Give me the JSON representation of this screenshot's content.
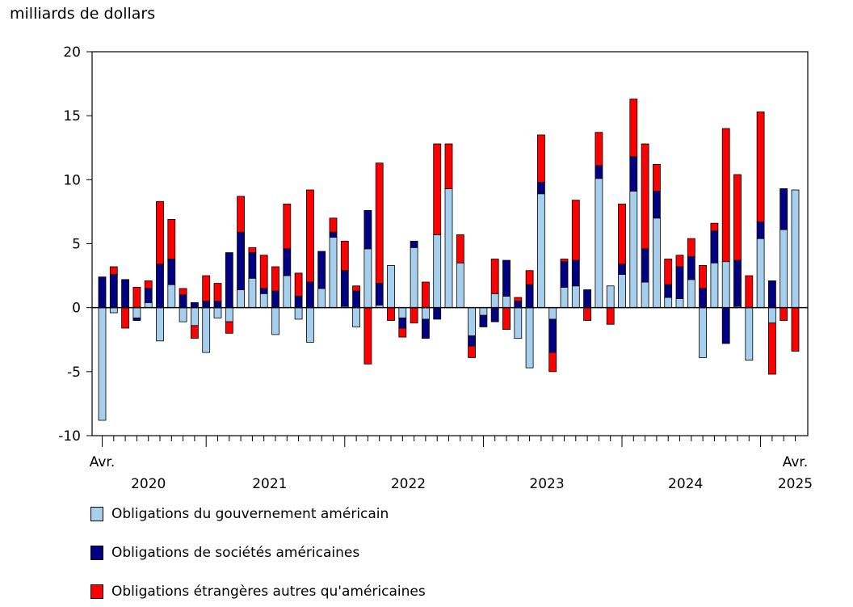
{
  "chart_data": {
    "type": "bar",
    "stacked": true,
    "ylabel": "milliards de dollars",
    "ylim": [
      -10,
      20
    ],
    "yticks": [
      -10,
      -5,
      0,
      5,
      10,
      15,
      20
    ],
    "start_month": "Avr.",
    "end_month": "Avr.",
    "year_labels": [
      "2020",
      "2021",
      "2022",
      "2023",
      "2024",
      "2025"
    ],
    "grid": false,
    "colors": {
      "gov": "#a6cfee",
      "corp": "#000080",
      "foreign": "#ff0000"
    },
    "series": [
      {
        "name": "Obligations du gouvernement américain",
        "values": [
          -8.8,
          -0.4,
          0,
          -0.8,
          0.4,
          -2.6,
          1.8,
          -1.1,
          -1.4,
          -3.5,
          -0.8,
          -1.1,
          1.4,
          2.3,
          1.1,
          -2.1,
          2.5,
          -0.9,
          -2.7,
          1.5,
          5.5,
          0.1,
          -1.5,
          4.6,
          0.2,
          3.3,
          -0.8,
          4.7,
          -0.9,
          5.7,
          9.3,
          3.5,
          -2.2,
          -0.6,
          1.1,
          0.9,
          -2.4,
          -4.7,
          8.9,
          -0.9,
          1.6,
          1.7,
          0,
          10.1,
          1.7,
          2.6,
          9.1,
          2.0,
          7.0,
          0.8,
          0.7,
          2.2,
          -3.9,
          3.5,
          3.6,
          0.1,
          -4.1,
          5.4,
          -1.2,
          6.1,
          9.2
        ]
      },
      {
        "name": "Obligations de sociétés américaines",
        "values": [
          2.4,
          2.6,
          2.2,
          -0.2,
          1.1,
          3.4,
          2.0,
          1.0,
          0.4,
          0.5,
          0.5,
          4.3,
          4.5,
          2.0,
          0.4,
          1.3,
          2.1,
          0.9,
          2.0,
          2.9,
          0.4,
          2.8,
          1.3,
          3.0,
          1.7,
          0,
          -0.8,
          0.5,
          -1.5,
          -0.9,
          0,
          0,
          -0.8,
          -0.9,
          -1.1,
          2.8,
          0.5,
          1.8,
          0.9,
          -2.6,
          2.0,
          2.0,
          1.4,
          1.0,
          0,
          0.8,
          2.7,
          2.6,
          2.1,
          1.0,
          2.5,
          1.8,
          1.5,
          2.5,
          -2.8,
          3.6,
          0,
          1.3,
          2.1,
          3.2,
          0
        ]
      },
      {
        "name": "Obligations étrangères autres qu'américaines",
        "values": [
          0,
          0.6,
          -1.6,
          1.6,
          0.6,
          4.9,
          3.1,
          0.5,
          -1.0,
          2.0,
          1.4,
          -0.9,
          2.8,
          0.4,
          2.6,
          1.9,
          3.5,
          1.8,
          7.2,
          0,
          1.1,
          2.3,
          0.4,
          -4.4,
          9.4,
          -1.0,
          -0.7,
          -1.2,
          2.0,
          7.1,
          3.5,
          2.2,
          -0.9,
          0,
          2.7,
          -1.7,
          0.3,
          1.1,
          3.7,
          -1.5,
          0.2,
          4.7,
          -1.0,
          2.6,
          -1.3,
          4.7,
          4.5,
          8.2,
          2.1,
          2.0,
          0.9,
          1.4,
          1.8,
          0.6,
          10.4,
          6.7,
          2.5,
          8.6,
          -4.0,
          -1.0,
          -3.4
        ]
      }
    ]
  },
  "legend": [
    {
      "label": "Obligations du gouvernement américain",
      "color": "#a6cfee"
    },
    {
      "label": "Obligations de sociétés américaines",
      "color": "#000080"
    },
    {
      "label": "Obligations étrangères autres qu'américaines",
      "color": "#ff0000"
    }
  ]
}
